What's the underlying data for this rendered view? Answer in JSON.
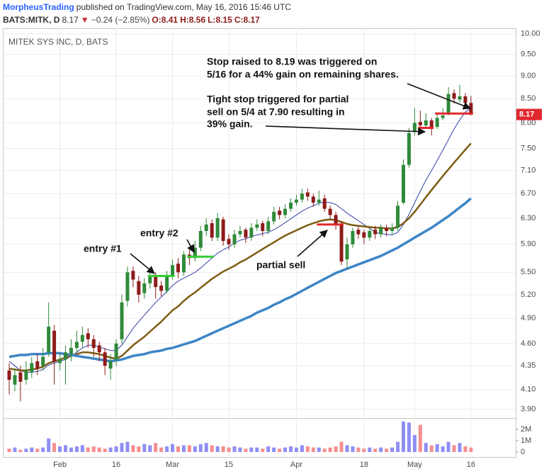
{
  "header": {
    "author": "MorpheusTrading",
    "published": "published on TradingView.com, May 16, 2016 15:46 UTC",
    "symbol": "BATS:MITK, D",
    "last": "8.17",
    "arrow": "▼",
    "change": "−0.24 (−2.85%)",
    "quote": [
      "O:8.41",
      "H:8.56",
      "L:8.15",
      "C:8.17"
    ]
  },
  "chart_data": {
    "type": "candlestick",
    "title": "MITEK SYS INC, D, BATS",
    "log_scale": true,
    "grid": true,
    "colors": {
      "up": "#2f8a3a",
      "down": "#8e1b1b",
      "up_volume": "#8f8ff5",
      "down_volume": "#f58f8f",
      "badge": "#e0282e"
    },
    "categories": [
      null,
      null,
      null,
      null,
      null,
      null,
      null,
      null,
      null,
      "Feb",
      null,
      null,
      null,
      null,
      null,
      null,
      null,
      null,
      null,
      "16",
      null,
      null,
      null,
      null,
      null,
      null,
      null,
      null,
      null,
      "Mar",
      null,
      null,
      null,
      null,
      null,
      null,
      null,
      null,
      null,
      "15",
      null,
      null,
      null,
      null,
      null,
      null,
      null,
      null,
      null,
      null,
      null,
      "Apr",
      null,
      null,
      null,
      null,
      null,
      null,
      null,
      null,
      null,
      null,
      null,
      "18",
      null,
      null,
      null,
      null,
      null,
      null,
      null,
      null,
      "May",
      null,
      null,
      null,
      null,
      null,
      null,
      null,
      null,
      null,
      "16"
    ],
    "open": [
      4.3,
      4.15,
      4.28,
      4.2,
      4.28,
      4.4,
      4.35,
      4.5,
      4.75,
      4.38,
      4.42,
      4.48,
      4.55,
      4.62,
      4.72,
      4.65,
      4.58,
      4.5,
      4.32,
      4.42,
      4.65,
      5.12,
      5.52,
      5.38,
      5.22,
      5.35,
      5.45,
      5.32,
      5.25,
      5.45,
      5.62,
      5.5,
      5.75,
      5.7,
      5.85,
      6.1,
      6.22,
      6.0,
      6.28,
      5.98,
      5.9,
      6.05,
      6.12,
      6.0,
      6.15,
      6.22,
      6.1,
      6.25,
      6.42,
      6.35,
      6.45,
      6.55,
      6.6,
      6.72,
      6.65,
      6.55,
      6.62,
      6.45,
      6.35,
      6.2,
      5.68,
      5.9,
      6.12,
      6.08,
      6.0,
      6.12,
      6.05,
      6.15,
      6.1,
      6.15,
      6.55,
      7.2,
      7.82,
      8.02,
      7.95,
      8.05,
      7.92,
      8.1,
      8.2,
      8.62,
      8.48,
      8.55,
      8.41
    ],
    "high": [
      4.38,
      4.32,
      4.35,
      4.4,
      4.45,
      4.48,
      4.55,
      5.1,
      4.82,
      4.5,
      4.58,
      4.65,
      4.75,
      4.8,
      4.78,
      4.7,
      4.62,
      4.55,
      4.48,
      4.65,
      5.2,
      5.58,
      5.58,
      5.45,
      5.42,
      5.52,
      5.5,
      5.38,
      5.52,
      5.68,
      5.7,
      5.8,
      5.82,
      5.95,
      6.18,
      6.3,
      6.28,
      6.38,
      6.32,
      6.05,
      6.12,
      6.18,
      6.15,
      6.22,
      6.28,
      6.26,
      6.32,
      6.48,
      6.48,
      6.52,
      6.62,
      6.68,
      6.78,
      6.78,
      6.7,
      6.75,
      6.68,
      6.5,
      6.4,
      6.25,
      6.0,
      6.15,
      6.18,
      6.12,
      6.15,
      6.18,
      6.2,
      6.2,
      6.22,
      6.58,
      7.3,
      7.9,
      8.3,
      8.25,
      8.2,
      8.1,
      8.18,
      8.3,
      8.75,
      8.7,
      8.8,
      8.62,
      8.56
    ],
    "low": [
      4.05,
      4.08,
      3.98,
      4.15,
      4.22,
      4.25,
      4.3,
      4.45,
      4.15,
      4.3,
      4.15,
      4.4,
      4.5,
      4.55,
      4.55,
      4.45,
      4.4,
      4.25,
      4.2,
      4.35,
      4.6,
      5.05,
      5.3,
      5.1,
      5.15,
      5.28,
      5.15,
      5.18,
      5.22,
      5.4,
      5.42,
      5.45,
      5.6,
      5.65,
      5.8,
      6.02,
      5.95,
      5.95,
      5.88,
      5.82,
      5.85,
      6.0,
      5.92,
      5.95,
      6.1,
      6.02,
      6.05,
      6.2,
      6.28,
      6.3,
      6.4,
      6.5,
      6.55,
      6.58,
      6.48,
      6.5,
      6.4,
      6.28,
      6.12,
      5.6,
      5.55,
      5.85,
      5.98,
      5.9,
      5.95,
      5.98,
      6.0,
      6.02,
      6.05,
      6.1,
      6.52,
      7.15,
      7.75,
      7.85,
      7.9,
      7.75,
      7.88,
      8.05,
      8.15,
      8.4,
      8.42,
      8.3,
      8.15
    ],
    "close": [
      4.2,
      4.25,
      4.18,
      4.3,
      4.38,
      4.32,
      4.45,
      4.8,
      4.4,
      4.42,
      4.5,
      4.55,
      4.62,
      4.7,
      4.65,
      4.55,
      4.5,
      4.35,
      4.4,
      4.6,
      5.1,
      5.5,
      5.4,
      5.2,
      5.35,
      5.45,
      5.3,
      5.25,
      5.45,
      5.6,
      5.5,
      5.75,
      5.7,
      5.85,
      6.1,
      6.2,
      6.0,
      6.3,
      5.95,
      5.9,
      6.05,
      6.1,
      6.0,
      6.15,
      6.2,
      6.1,
      6.25,
      6.4,
      6.35,
      6.45,
      6.55,
      6.6,
      6.7,
      6.65,
      6.55,
      6.6,
      6.45,
      6.35,
      6.2,
      5.65,
      5.9,
      6.1,
      6.05,
      6.0,
      6.1,
      6.05,
      6.15,
      6.1,
      6.15,
      6.5,
      7.2,
      7.8,
      8.0,
      7.95,
      8.05,
      7.9,
      8.1,
      8.15,
      8.6,
      8.5,
      8.55,
      8.41,
      8.17
    ],
    "overlays": [
      {
        "color": "#3343a8",
        "values": [
          4.4,
          4.35,
          4.3,
          4.28,
          4.28,
          4.29,
          4.31,
          4.36,
          4.38,
          4.4,
          4.42,
          4.46,
          4.5,
          4.55,
          4.58,
          4.58,
          4.56,
          4.54,
          4.52,
          4.52,
          4.58,
          4.68,
          4.78,
          4.86,
          4.94,
          5.02,
          5.1,
          5.17,
          5.24,
          5.32,
          5.38,
          5.42,
          5.46,
          5.5,
          5.56,
          5.63,
          5.7,
          5.77,
          5.82,
          5.86,
          5.92,
          5.96,
          5.98,
          6.02,
          6.04,
          6.06,
          6.08,
          6.12,
          6.17,
          6.23,
          6.29,
          6.35,
          6.41,
          6.46,
          6.5,
          6.54,
          6.56,
          6.55,
          6.52,
          6.45,
          6.38,
          6.32,
          6.26,
          6.2,
          6.14,
          6.08,
          6.06,
          6.05,
          6.04,
          6.08,
          6.2,
          6.36,
          6.55,
          6.74,
          6.93,
          7.1,
          7.28,
          7.47,
          7.67,
          7.88,
          8.06,
          8.22,
          8.3
        ]
      },
      {
        "color": "#7d5c12",
        "values": [
          4.32,
          4.31,
          4.3,
          4.3,
          4.31,
          4.32,
          4.34,
          4.38,
          4.4,
          4.42,
          4.44,
          4.46,
          4.48,
          4.5,
          4.5,
          4.49,
          4.48,
          4.46,
          4.44,
          4.43,
          4.46,
          4.52,
          4.58,
          4.63,
          4.68,
          4.74,
          4.8,
          4.86,
          4.93,
          5.0,
          5.05,
          5.12,
          5.18,
          5.23,
          5.29,
          5.35,
          5.41,
          5.46,
          5.51,
          5.55,
          5.59,
          5.64,
          5.68,
          5.73,
          5.78,
          5.83,
          5.88,
          5.93,
          5.98,
          6.03,
          6.07,
          6.11,
          6.15,
          6.19,
          6.22,
          6.25,
          6.27,
          6.28,
          6.27,
          6.24,
          6.21,
          6.19,
          6.18,
          6.17,
          6.16,
          6.15,
          6.15,
          6.14,
          6.14,
          6.16,
          6.22,
          6.3,
          6.4,
          6.52,
          6.64,
          6.76,
          6.88,
          7.0,
          7.12,
          7.24,
          7.36,
          7.48,
          7.6
        ]
      },
      {
        "color": "#3d85c6",
        "values": [
          4.45,
          4.46,
          4.47,
          4.47,
          4.48,
          4.48,
          4.48,
          4.49,
          4.49,
          4.49,
          4.48,
          4.47,
          4.46,
          4.45,
          4.44,
          4.43,
          4.42,
          4.41,
          4.4,
          4.41,
          4.42,
          4.44,
          4.46,
          4.47,
          4.48,
          4.5,
          4.51,
          4.52,
          4.54,
          4.55,
          4.57,
          4.59,
          4.61,
          4.63,
          4.66,
          4.69,
          4.72,
          4.75,
          4.78,
          4.81,
          4.84,
          4.87,
          4.9,
          4.93,
          4.97,
          5.0,
          5.03,
          5.07,
          5.1,
          5.14,
          5.17,
          5.21,
          5.25,
          5.29,
          5.33,
          5.37,
          5.41,
          5.45,
          5.49,
          5.52,
          5.55,
          5.58,
          5.61,
          5.64,
          5.67,
          5.7,
          5.73,
          5.77,
          5.81,
          5.85,
          5.9,
          5.95,
          6.0,
          6.05,
          6.1,
          6.15,
          6.21,
          6.27,
          6.33,
          6.4,
          6.47,
          6.54,
          6.62
        ]
      }
    ],
    "levels": [
      {
        "value": 5.45,
        "color": "#33cc33",
        "x": [
          25,
          29
        ]
      },
      {
        "value": 5.72,
        "color": "#33cc33",
        "x": [
          32,
          36
        ]
      },
      {
        "value": 6.2,
        "color": "#e0282e",
        "x": [
          55,
          59
        ]
      },
      {
        "value": 7.9,
        "color": "#e0282e",
        "x": [
          73,
          75
        ]
      },
      {
        "value": 8.19,
        "color": "#e0282e",
        "x": [
          76,
          82
        ]
      }
    ],
    "annotations": [
      "Stop raised to 8.19 was triggered on",
      "5/16 for a 44% gain on remaining shares.",
      "Tight stop triggered for partial",
      "sell on 5/4 at 7.90 resulting in",
      "39% gain.",
      "entry #1",
      "entry #2",
      "partial sell"
    ],
    "ylim": [
      3.83,
      10.14
    ],
    "yticks": [
      {
        "value": 3.9,
        "label": "3.90"
      },
      {
        "value": 4.1,
        "label": "4.10"
      },
      4.35,
      {
        "value": 4.6,
        "label": "4.60"
      },
      {
        "value": 4.9,
        "label": "4.90"
      },
      {
        "value": 5.2,
        "label": "5.20"
      },
      {
        "value": 5.5,
        "label": "5.50"
      },
      {
        "value": 5.9,
        "label": "5.90"
      },
      {
        "value": 6.3,
        "label": "6.30"
      },
      {
        "value": 6.7,
        "label": "6.70"
      },
      {
        "value": 7.1,
        "label": "7.10"
      },
      {
        "value": 7.5,
        "label": "7.50"
      },
      {
        "value": 8,
        "label": "8.00"
      },
      {
        "value": 8.5,
        "label": "8.50"
      },
      {
        "value": 9,
        "label": "9.00"
      },
      {
        "value": 9.5,
        "label": "9.50"
      },
      {
        "value": 10,
        "label": "10.00"
      }
    ],
    "volume": {
      "ylim": [
        0,
        3
      ],
      "yticks": [
        0,
        {
          "value": 1,
          "label": "1M"
        },
        {
          "value": 2,
          "label": "2M"
        }
      ],
      "values": [
        0.3,
        0.4,
        0.2,
        0.3,
        0.4,
        0.3,
        0.4,
        1.2,
        0.8,
        0.5,
        0.6,
        0.4,
        0.5,
        0.6,
        0.4,
        0.5,
        0.4,
        0.3,
        0.4,
        0.5,
        0.8,
        0.9,
        0.6,
        0.5,
        0.7,
        0.6,
        0.8,
        0.4,
        0.5,
        0.7,
        0.5,
        0.6,
        0.6,
        0.5,
        0.7,
        0.8,
        0.6,
        0.5,
        0.5,
        0.4,
        0.5,
        0.4,
        0.3,
        0.4,
        0.4,
        0.3,
        0.5,
        0.4,
        0.3,
        0.4,
        0.5,
        0.4,
        0.6,
        0.5,
        0.4,
        0.4,
        0.3,
        0.4,
        0.5,
        0.9,
        0.6,
        0.5,
        0.4,
        0.3,
        0.4,
        0.3,
        0.4,
        0.3,
        0.4,
        0.9,
        2.7,
        2.6,
        1.5,
        2.4,
        0.8,
        0.6,
        0.7,
        0.5,
        0.9,
        0.6,
        0.8,
        0.5,
        0.4
      ]
    }
  }
}
